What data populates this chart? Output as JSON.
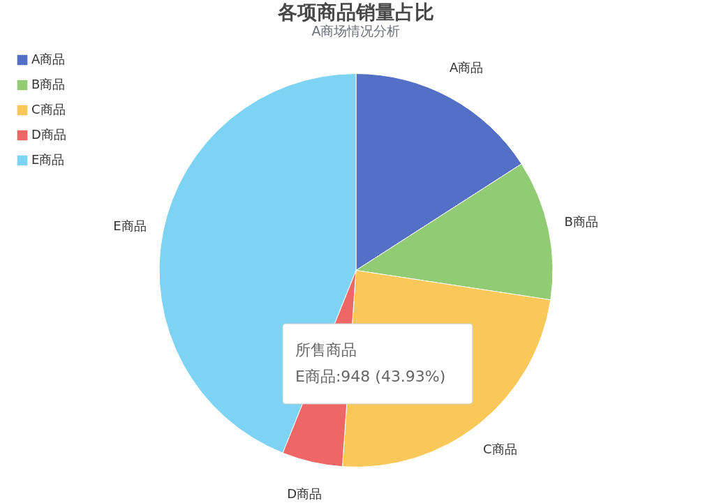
{
  "chart_data": {
    "type": "pie",
    "title": "各项商品销量占比",
    "subtitle": "A商场情况分析",
    "categories": [
      "A商品",
      "B商品",
      "C商品",
      "D商品",
      "E商品"
    ],
    "values": [
      15.9,
      11.5,
      23.7,
      4.97,
      43.93
    ],
    "colors": [
      "#5470c6",
      "#91cc75",
      "#fac858",
      "#ee6666",
      "#7dd3f4"
    ],
    "legend": "top left",
    "annotations": [
      "所售商品",
      "E商品:948 (43.93%)"
    ]
  }
}
